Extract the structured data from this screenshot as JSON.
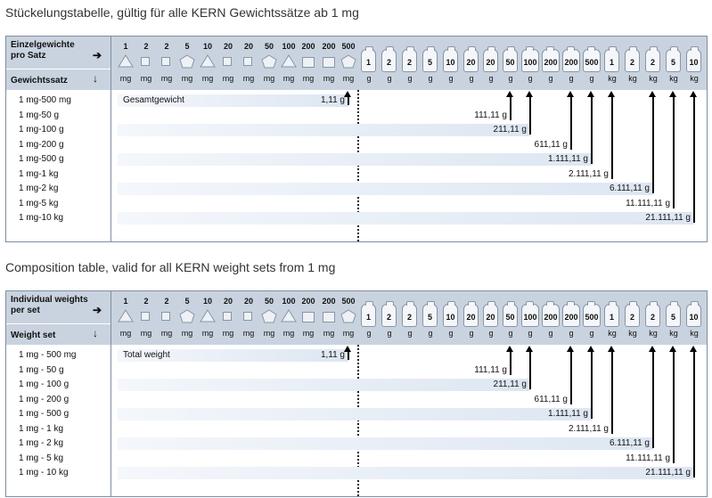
{
  "tables": [
    {
      "title": "Stückelungstabelle, gültig für alle KERN Gewichtssätze ab 1 mg",
      "header_top": [
        "Einzelgewichte",
        "pro Satz"
      ],
      "header_bottom": "Gewichtssatz",
      "total_label": "Gesamtgewicht",
      "rows": [
        "1 mg-500 mg",
        "1 mg-50 g",
        "1 mg-100 g",
        "1 mg-200 g",
        "1 mg-500 g",
        "1 mg-1 kg",
        "1 mg-2 kg",
        "1 mg-5 kg",
        "1 mg-10 kg"
      ],
      "values": [
        "1,11 g",
        "111,11 g",
        "211,11 g",
        "611,11 g",
        "1.111,11 g",
        "2.111,11 g",
        "6.111,11 g",
        "11.111,11 g",
        "21.111,11 g"
      ]
    },
    {
      "title": "Composition table, valid for all KERN weight sets from 1 mg",
      "header_top": [
        "Individual weights",
        "per set"
      ],
      "header_bottom": "Weight set",
      "total_label": "Total weight",
      "rows": [
        "1 mg - 500 mg",
        "1 mg - 50 g",
        "1 mg - 100 g",
        "1 mg - 200 g",
        "1 mg - 500 g",
        "1 mg - 1 kg",
        "1 mg - 2 kg",
        "1 mg - 5 kg",
        "1 mg - 10 kg"
      ],
      "values": [
        "1,11 g",
        "111,11 g",
        "211,11 g",
        "611,11 g",
        "1.111,11 g",
        "2.111,11 g",
        "6.111,11 g",
        "11.111,11 g",
        "21.111,11 g"
      ]
    }
  ],
  "weights": [
    {
      "n": "1",
      "u": "mg",
      "shape": "triangle"
    },
    {
      "n": "2",
      "u": "mg",
      "shape": "square"
    },
    {
      "n": "2",
      "u": "mg",
      "shape": "square"
    },
    {
      "n": "5",
      "u": "mg",
      "shape": "pentagon"
    },
    {
      "n": "10",
      "u": "mg",
      "shape": "triangle"
    },
    {
      "n": "20",
      "u": "mg",
      "shape": "square"
    },
    {
      "n": "20",
      "u": "mg",
      "shape": "square"
    },
    {
      "n": "50",
      "u": "mg",
      "shape": "pentagon"
    },
    {
      "n": "100",
      "u": "mg",
      "shape": "triangle"
    },
    {
      "n": "200",
      "u": "mg",
      "shape": "square"
    },
    {
      "n": "200",
      "u": "mg",
      "shape": "square"
    },
    {
      "n": "500",
      "u": "mg",
      "shape": "pentagon"
    },
    {
      "n": "1",
      "u": "g",
      "shape": "cylinder"
    },
    {
      "n": "2",
      "u": "g",
      "shape": "cylinder"
    },
    {
      "n": "2",
      "u": "g",
      "shape": "cylinder"
    },
    {
      "n": "5",
      "u": "g",
      "shape": "cylinder"
    },
    {
      "n": "10",
      "u": "g",
      "shape": "cylinder"
    },
    {
      "n": "20",
      "u": "g",
      "shape": "cylinder"
    },
    {
      "n": "20",
      "u": "g",
      "shape": "cylinder"
    },
    {
      "n": "50",
      "u": "g",
      "shape": "cylinder"
    },
    {
      "n": "100",
      "u": "g",
      "shape": "cylinder"
    },
    {
      "n": "200",
      "u": "g",
      "shape": "cylinder"
    },
    {
      "n": "200",
      "u": "g",
      "shape": "cylinder"
    },
    {
      "n": "500",
      "u": "g",
      "shape": "cylinder"
    },
    {
      "n": "1",
      "u": "kg",
      "shape": "cylinder"
    },
    {
      "n": "2",
      "u": "kg",
      "shape": "cylinder"
    },
    {
      "n": "2",
      "u": "kg",
      "shape": "cylinder"
    },
    {
      "n": "5",
      "u": "kg",
      "shape": "cylinder"
    },
    {
      "n": "10",
      "u": "kg",
      "shape": "cylinder"
    }
  ],
  "row_end_weight_index": [
    11,
    19,
    20,
    22,
    23,
    24,
    26,
    27,
    28
  ],
  "colors": {
    "header_bg": "#c9d3df",
    "border": "#7f8ea0",
    "bar_end": "#dde6f2"
  },
  "icons": {
    "right": "arrow-right-icon",
    "down": "arrow-down-icon"
  }
}
